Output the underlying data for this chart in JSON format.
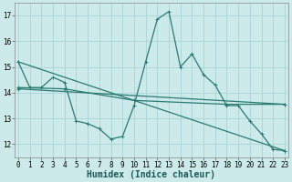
{
  "title": "",
  "xlabel": "Humidex (Indice chaleur)",
  "ylabel": "",
  "background_color": "#cceaea",
  "grid_color": "#aad4d4",
  "line_color": "#2a7a72",
  "series": [
    {
      "x": [
        0,
        1,
        2,
        3,
        4,
        5,
        6,
        7,
        8,
        9,
        10,
        11,
        12,
        13,
        14,
        15,
        16,
        17,
        18,
        19,
        20,
        21,
        22,
        23
      ],
      "y": [
        15.2,
        14.2,
        14.2,
        14.6,
        14.4,
        12.9,
        12.8,
        12.6,
        12.2,
        12.3,
        13.5,
        15.2,
        16.85,
        17.15,
        15.0,
        15.5,
        14.7,
        14.3,
        13.5,
        13.5,
        12.9,
        12.4,
        11.8,
        11.75
      ]
    },
    {
      "x": [
        0,
        23
      ],
      "y": [
        15.2,
        11.75
      ]
    },
    {
      "x": [
        0,
        4,
        10,
        18,
        23
      ],
      "y": [
        14.2,
        14.15,
        13.7,
        13.55,
        13.55
      ]
    },
    {
      "x": [
        0,
        23
      ],
      "y": [
        14.15,
        13.55
      ]
    }
  ],
  "xlim": [
    0,
    23
  ],
  "ylim": [
    11.5,
    17.5
  ],
  "yticks": [
    12,
    13,
    14,
    15,
    16,
    17
  ],
  "xticks": [
    0,
    1,
    2,
    3,
    4,
    5,
    6,
    7,
    8,
    9,
    10,
    11,
    12,
    13,
    14,
    15,
    16,
    17,
    18,
    19,
    20,
    21,
    22,
    23
  ],
  "xlabel_fontsize": 7,
  "tick_fontsize": 5.5,
  "linewidth": 0.9,
  "markersize": 2.5
}
